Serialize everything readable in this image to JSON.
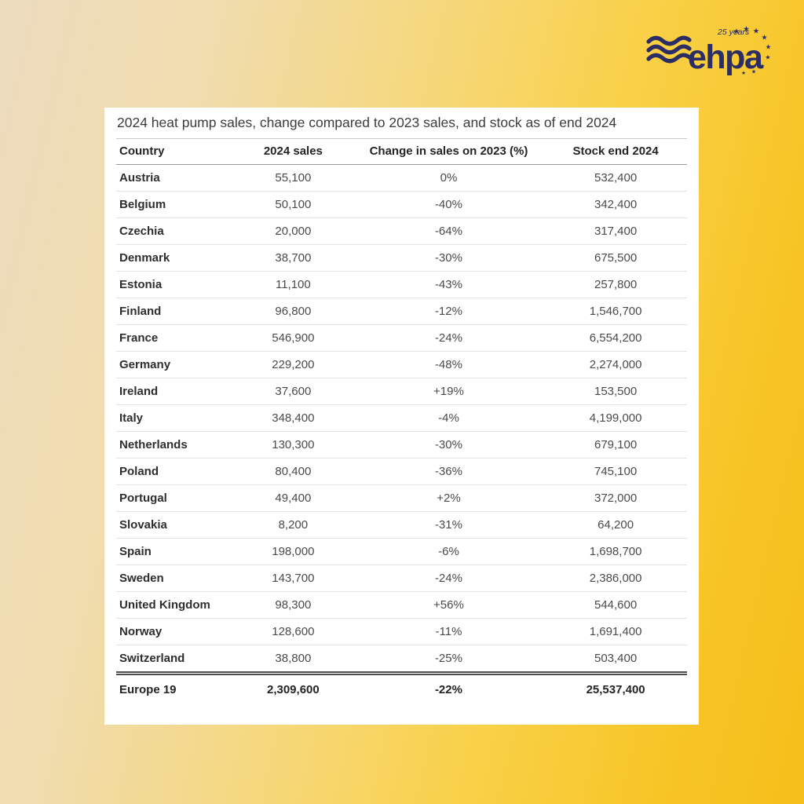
{
  "logo": {
    "brand": "ehpa",
    "badge": "25 years",
    "color_navy": "#2b2d64"
  },
  "colors": {
    "background_left": "#ecdbbe",
    "background_right": "#f5bf1a",
    "card_background": "#ffffff",
    "row_border": "#e2e2e2",
    "header_border": "#9b9b9b",
    "total_border": "#4e4e4e"
  },
  "chart_data": {
    "type": "table",
    "title": "2024 heat pump sales, change compared to 2023 sales, and stock as of end 2024",
    "columns": [
      "Country",
      "2024 sales",
      "Change in sales on 2023 (%)",
      "Stock end 2024"
    ],
    "rows": [
      {
        "country": "Austria",
        "sales_2024": 55100,
        "change_pct": 0,
        "stock_end_2024": 532400
      },
      {
        "country": "Belgium",
        "sales_2024": 50100,
        "change_pct": -40,
        "stock_end_2024": 342400
      },
      {
        "country": "Czechia",
        "sales_2024": 20000,
        "change_pct": -64,
        "stock_end_2024": 317400
      },
      {
        "country": "Denmark",
        "sales_2024": 38700,
        "change_pct": -30,
        "stock_end_2024": 675500
      },
      {
        "country": "Estonia",
        "sales_2024": 11100,
        "change_pct": -43,
        "stock_end_2024": 257800
      },
      {
        "country": "Finland",
        "sales_2024": 96800,
        "change_pct": -12,
        "stock_end_2024": 1546700
      },
      {
        "country": "France",
        "sales_2024": 546900,
        "change_pct": -24,
        "stock_end_2024": 6554200
      },
      {
        "country": "Germany",
        "sales_2024": 229200,
        "change_pct": -48,
        "stock_end_2024": 2274000
      },
      {
        "country": "Ireland",
        "sales_2024": 37600,
        "change_pct": 19,
        "stock_end_2024": 153500
      },
      {
        "country": "Italy",
        "sales_2024": 348400,
        "change_pct": -4,
        "stock_end_2024": 4199000
      },
      {
        "country": "Netherlands",
        "sales_2024": 130300,
        "change_pct": -30,
        "stock_end_2024": 679100
      },
      {
        "country": "Poland",
        "sales_2024": 80400,
        "change_pct": -36,
        "stock_end_2024": 745100
      },
      {
        "country": "Portugal",
        "sales_2024": 49400,
        "change_pct": 2,
        "stock_end_2024": 372000
      },
      {
        "country": "Slovakia",
        "sales_2024": 8200,
        "change_pct": -31,
        "stock_end_2024": 64200
      },
      {
        "country": "Spain",
        "sales_2024": 198000,
        "change_pct": -6,
        "stock_end_2024": 1698700
      },
      {
        "country": "Sweden",
        "sales_2024": 143700,
        "change_pct": -24,
        "stock_end_2024": 2386000
      },
      {
        "country": "United Kingdom",
        "sales_2024": 98300,
        "change_pct": 56,
        "stock_end_2024": 544600
      },
      {
        "country": "Norway",
        "sales_2024": 128600,
        "change_pct": -11,
        "stock_end_2024": 1691400
      },
      {
        "country": "Switzerland",
        "sales_2024": 38800,
        "change_pct": -25,
        "stock_end_2024": 503400
      }
    ],
    "total": {
      "country": "Europe 19",
      "sales_2024": 2309600,
      "change_pct": -22,
      "stock_end_2024": 25537400
    }
  },
  "table_display": {
    "rows": [
      [
        "Austria",
        "55,100",
        "0%",
        "532,400"
      ],
      [
        "Belgium",
        "50,100",
        "-40%",
        "342,400"
      ],
      [
        "Czechia",
        "20,000",
        "-64%",
        "317,400"
      ],
      [
        "Denmark",
        "38,700",
        "-30%",
        "675,500"
      ],
      [
        "Estonia",
        "11,100",
        "-43%",
        "257,800"
      ],
      [
        "Finland",
        "96,800",
        "-12%",
        "1,546,700"
      ],
      [
        "France",
        "546,900",
        "-24%",
        "6,554,200"
      ],
      [
        "Germany",
        "229,200",
        "-48%",
        "2,274,000"
      ],
      [
        "Ireland",
        "37,600",
        "+19%",
        "153,500"
      ],
      [
        "Italy",
        "348,400",
        "-4%",
        "4,199,000"
      ],
      [
        "Netherlands",
        "130,300",
        "-30%",
        "679,100"
      ],
      [
        "Poland",
        "80,400",
        "-36%",
        "745,100"
      ],
      [
        "Portugal",
        "49,400",
        "+2%",
        "372,000"
      ],
      [
        "Slovakia",
        "8,200",
        "-31%",
        "64,200"
      ],
      [
        "Spain",
        "198,000",
        "-6%",
        "1,698,700"
      ],
      [
        "Sweden",
        "143,700",
        "-24%",
        "2,386,000"
      ],
      [
        "United Kingdom",
        "98,300",
        "+56%",
        "544,600"
      ],
      [
        "Norway",
        "128,600",
        "-11%",
        "1,691,400"
      ],
      [
        "Switzerland",
        "38,800",
        "-25%",
        "503,400"
      ]
    ],
    "total": [
      "Europe 19",
      "2,309,600",
      "-22%",
      "25,537,400"
    ]
  }
}
